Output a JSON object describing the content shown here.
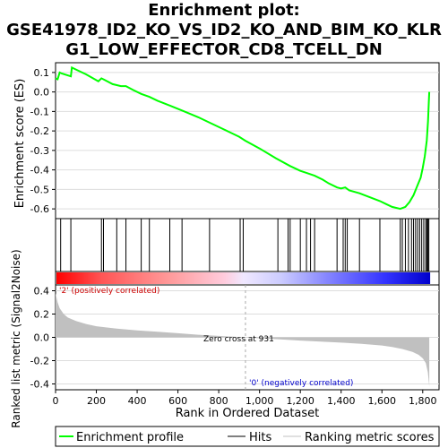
{
  "title_lines": [
    "Enrichment plot:",
    "GSE41978_ID2_KO_VS_ID2_KO_AND_BIM_KO_KLR",
    "G1_LOW_EFFECTOR_CD8_TCELL_DN"
  ],
  "colors": {
    "es_line": "#00ff00",
    "hits": "#000000",
    "metric_fill": "#c0c0c0",
    "grid": "#dddddd",
    "zero_line": "#aaaaaa",
    "pos_label": "#cc0000",
    "neg_label": "#0000cc"
  },
  "chart_data": [
    {
      "type": "line",
      "name": "enrichment-profile",
      "ylabel": "Enrichment score (ES)",
      "xlim": [
        0,
        1880
      ],
      "ylim": [
        -0.65,
        0.15
      ],
      "yticks": [
        0.1,
        0.0,
        -0.1,
        -0.2,
        -0.3,
        -0.4,
        -0.5,
        -0.6
      ],
      "ytick_labels": [
        "0.1",
        "0.0",
        "-0.1",
        "-0.2",
        "-0.3",
        "-0.4",
        "-0.5",
        "-0.6"
      ],
      "x": [
        0,
        10,
        20,
        30,
        75,
        80,
        100,
        150,
        210,
        225,
        240,
        280,
        320,
        345,
        380,
        420,
        460,
        500,
        560,
        620,
        700,
        760,
        820,
        900,
        930,
        1000,
        1080,
        1150,
        1200,
        1230,
        1270,
        1310,
        1340,
        1380,
        1400,
        1420,
        1440,
        1490,
        1540,
        1590,
        1620,
        1650,
        1690,
        1715,
        1735,
        1755,
        1770,
        1790,
        1800,
        1810,
        1820,
        1826,
        1830,
        1832
      ],
      "y": [
        0.07,
        0.065,
        0.1,
        0.095,
        0.08,
        0.125,
        0.115,
        0.09,
        0.055,
        0.07,
        0.062,
        0.04,
        0.03,
        0.03,
        0.01,
        -0.01,
        -0.025,
        -0.045,
        -0.07,
        -0.095,
        -0.13,
        -0.16,
        -0.19,
        -0.23,
        -0.25,
        -0.29,
        -0.34,
        -0.38,
        -0.405,
        -0.415,
        -0.43,
        -0.45,
        -0.47,
        -0.49,
        -0.495,
        -0.49,
        -0.505,
        -0.52,
        -0.54,
        -0.56,
        -0.575,
        -0.59,
        -0.6,
        -0.59,
        -0.565,
        -0.53,
        -0.49,
        -0.44,
        -0.39,
        -0.33,
        -0.25,
        -0.15,
        -0.05,
        0.0
      ]
    },
    {
      "type": "hits",
      "name": "hits",
      "hit_positions": [
        25,
        75,
        225,
        235,
        300,
        345,
        420,
        460,
        560,
        620,
        755,
        905,
        920,
        1090,
        1140,
        1150,
        1200,
        1230,
        1250,
        1270,
        1380,
        1410,
        1420,
        1430,
        1490,
        1590,
        1690,
        1700,
        1715,
        1730,
        1745,
        1755,
        1765,
        1775,
        1785,
        1795,
        1805,
        1815,
        1820,
        1825,
        1830
      ]
    },
    {
      "type": "area",
      "name": "ranking-metric",
      "xlabel": "Rank in Ordered Dataset",
      "ylabel": "Ranked list metric (Signal2Noise)",
      "xlim": [
        0,
        1880
      ],
      "ylim": [
        -0.45,
        0.45
      ],
      "xticks": [
        0,
        200,
        400,
        600,
        800,
        1000,
        1200,
        1400,
        1600,
        1800
      ],
      "xtick_labels": [
        "0",
        "200",
        "400",
        "600",
        "800",
        "1,000",
        "1,200",
        "1,400",
        "1,600",
        "1,800"
      ],
      "yticks": [
        0.4,
        0.2,
        0.0,
        -0.2,
        -0.4
      ],
      "ytick_labels": [
        "0.4",
        "0.2",
        "0.0",
        "-0.2",
        "-0.4"
      ],
      "x": [
        0,
        10,
        20,
        40,
        60,
        100,
        150,
        200,
        300,
        400,
        500,
        600,
        700,
        800,
        931,
        1000,
        1100,
        1200,
        1300,
        1400,
        1500,
        1600,
        1650,
        1700,
        1750,
        1780,
        1800,
        1815,
        1825,
        1832
      ],
      "y": [
        0.38,
        0.3,
        0.25,
        0.2,
        0.17,
        0.14,
        0.115,
        0.095,
        0.075,
        0.06,
        0.048,
        0.035,
        0.022,
        0.012,
        0.0,
        -0.008,
        -0.018,
        -0.028,
        -0.036,
        -0.045,
        -0.056,
        -0.07,
        -0.082,
        -0.1,
        -0.125,
        -0.15,
        -0.18,
        -0.22,
        -0.3,
        -0.42
      ],
      "zero_cross": 931,
      "annotations": {
        "pos": "'2' (positively correlated)",
        "neg": "'0' (negatively correlated)",
        "zero": "Zero cross at 931"
      }
    }
  ],
  "legend": {
    "items": [
      {
        "label": "Enrichment profile",
        "color": "#00ff00"
      },
      {
        "label": "Hits",
        "color": "#000000"
      },
      {
        "label": "Ranking metric scores",
        "color": "#c0c0c0"
      }
    ]
  }
}
